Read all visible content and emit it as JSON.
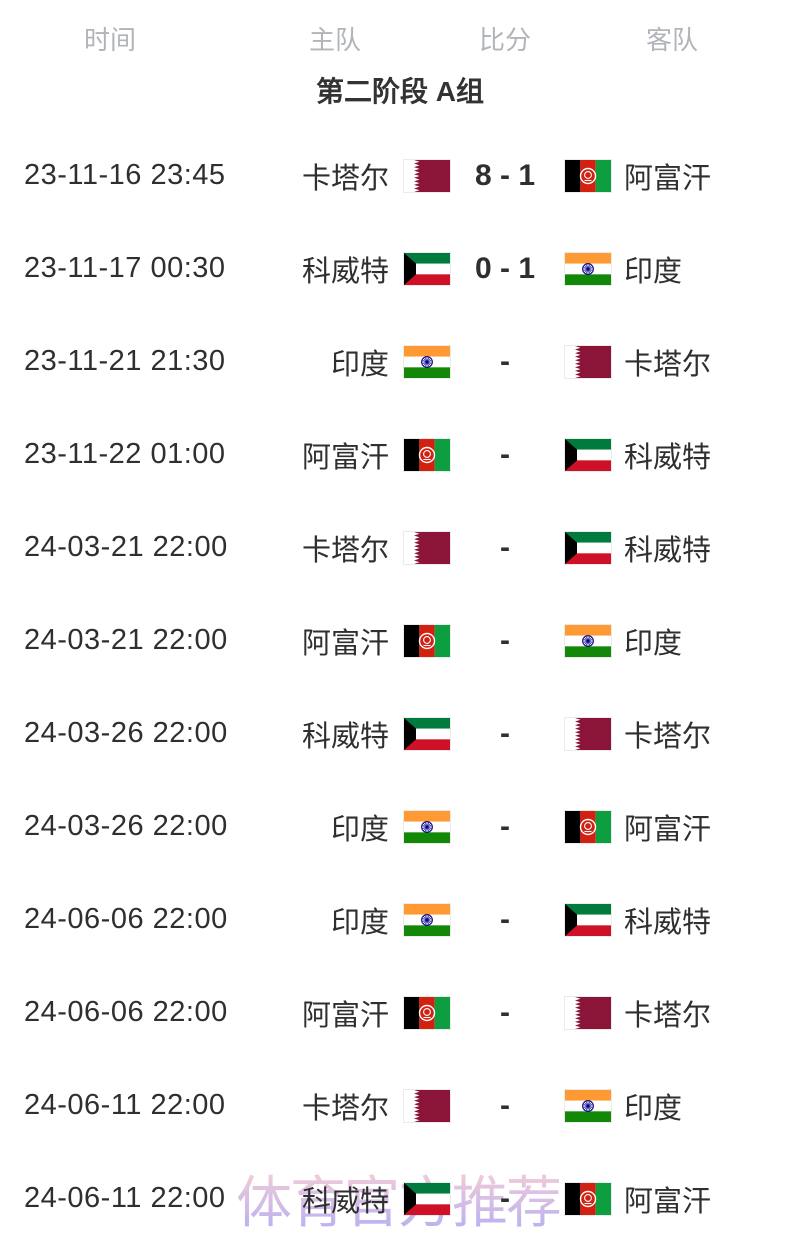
{
  "header": {
    "columns": [
      {
        "label": "时间"
      },
      {
        "label": "主队"
      },
      {
        "label": "比分"
      },
      {
        "label": "客队"
      }
    ]
  },
  "section_title": "第二阶段 A组",
  "watermark": "体育官方推荐",
  "colors": {
    "bg": "#ffffff",
    "header-text": "#b1b4b9",
    "title-text": "#333333",
    "row-text": "#2f2f31",
    "score-text": "#2f2f31",
    "watermark-top": "#f3c4d1",
    "watermark-bottom": "#b2a4ef"
  },
  "flags": {
    "qatar": {
      "maroon": "#8a1538",
      "white": "#ffffff"
    },
    "afghanistan": {
      "black": "#000000",
      "red": "#d32011",
      "green": "#0d9e3f",
      "emblem": "#ffffff"
    },
    "kuwait": {
      "green": "#007a3d",
      "white": "#ffffff",
      "red": "#ce1126",
      "black": "#000000"
    },
    "india": {
      "saffron": "#ff9933",
      "white": "#ffffff",
      "green": "#138808",
      "navy": "#000088"
    }
  },
  "matches": [
    {
      "time": "23-11-16 23:45",
      "home": {
        "name": "卡塔尔",
        "flag": "qatar"
      },
      "score": "8 - 1",
      "away": {
        "name": "阿富汗",
        "flag": "afghanistan"
      }
    },
    {
      "time": "23-11-17 00:30",
      "home": {
        "name": "科威特",
        "flag": "kuwait"
      },
      "score": "0 - 1",
      "away": {
        "name": "印度",
        "flag": "india"
      }
    },
    {
      "time": "23-11-21 21:30",
      "home": {
        "name": "印度",
        "flag": "india"
      },
      "score": "-",
      "away": {
        "name": "卡塔尔",
        "flag": "qatar"
      }
    },
    {
      "time": "23-11-22 01:00",
      "home": {
        "name": "阿富汗",
        "flag": "afghanistan"
      },
      "score": "-",
      "away": {
        "name": "科威特",
        "flag": "kuwait"
      }
    },
    {
      "time": "24-03-21 22:00",
      "home": {
        "name": "卡塔尔",
        "flag": "qatar"
      },
      "score": "-",
      "away": {
        "name": "科威特",
        "flag": "kuwait"
      }
    },
    {
      "time": "24-03-21 22:00",
      "home": {
        "name": "阿富汗",
        "flag": "afghanistan"
      },
      "score": "-",
      "away": {
        "name": "印度",
        "flag": "india"
      }
    },
    {
      "time": "24-03-26 22:00",
      "home": {
        "name": "科威特",
        "flag": "kuwait"
      },
      "score": "-",
      "away": {
        "name": "卡塔尔",
        "flag": "qatar"
      }
    },
    {
      "time": "24-03-26 22:00",
      "home": {
        "name": "印度",
        "flag": "india"
      },
      "score": "-",
      "away": {
        "name": "阿富汗",
        "flag": "afghanistan"
      }
    },
    {
      "time": "24-06-06 22:00",
      "home": {
        "name": "印度",
        "flag": "india"
      },
      "score": "-",
      "away": {
        "name": "科威特",
        "flag": "kuwait"
      }
    },
    {
      "time": "24-06-06 22:00",
      "home": {
        "name": "阿富汗",
        "flag": "afghanistan"
      },
      "score": "-",
      "away": {
        "name": "卡塔尔",
        "flag": "qatar"
      }
    },
    {
      "time": "24-06-11 22:00",
      "home": {
        "name": "卡塔尔",
        "flag": "qatar"
      },
      "score": "-",
      "away": {
        "name": "印度",
        "flag": "india"
      }
    },
    {
      "time": "24-06-11 22:00",
      "home": {
        "name": "科威特",
        "flag": "kuwait"
      },
      "score": "-",
      "away": {
        "name": "阿富汗",
        "flag": "afghanistan"
      }
    }
  ]
}
